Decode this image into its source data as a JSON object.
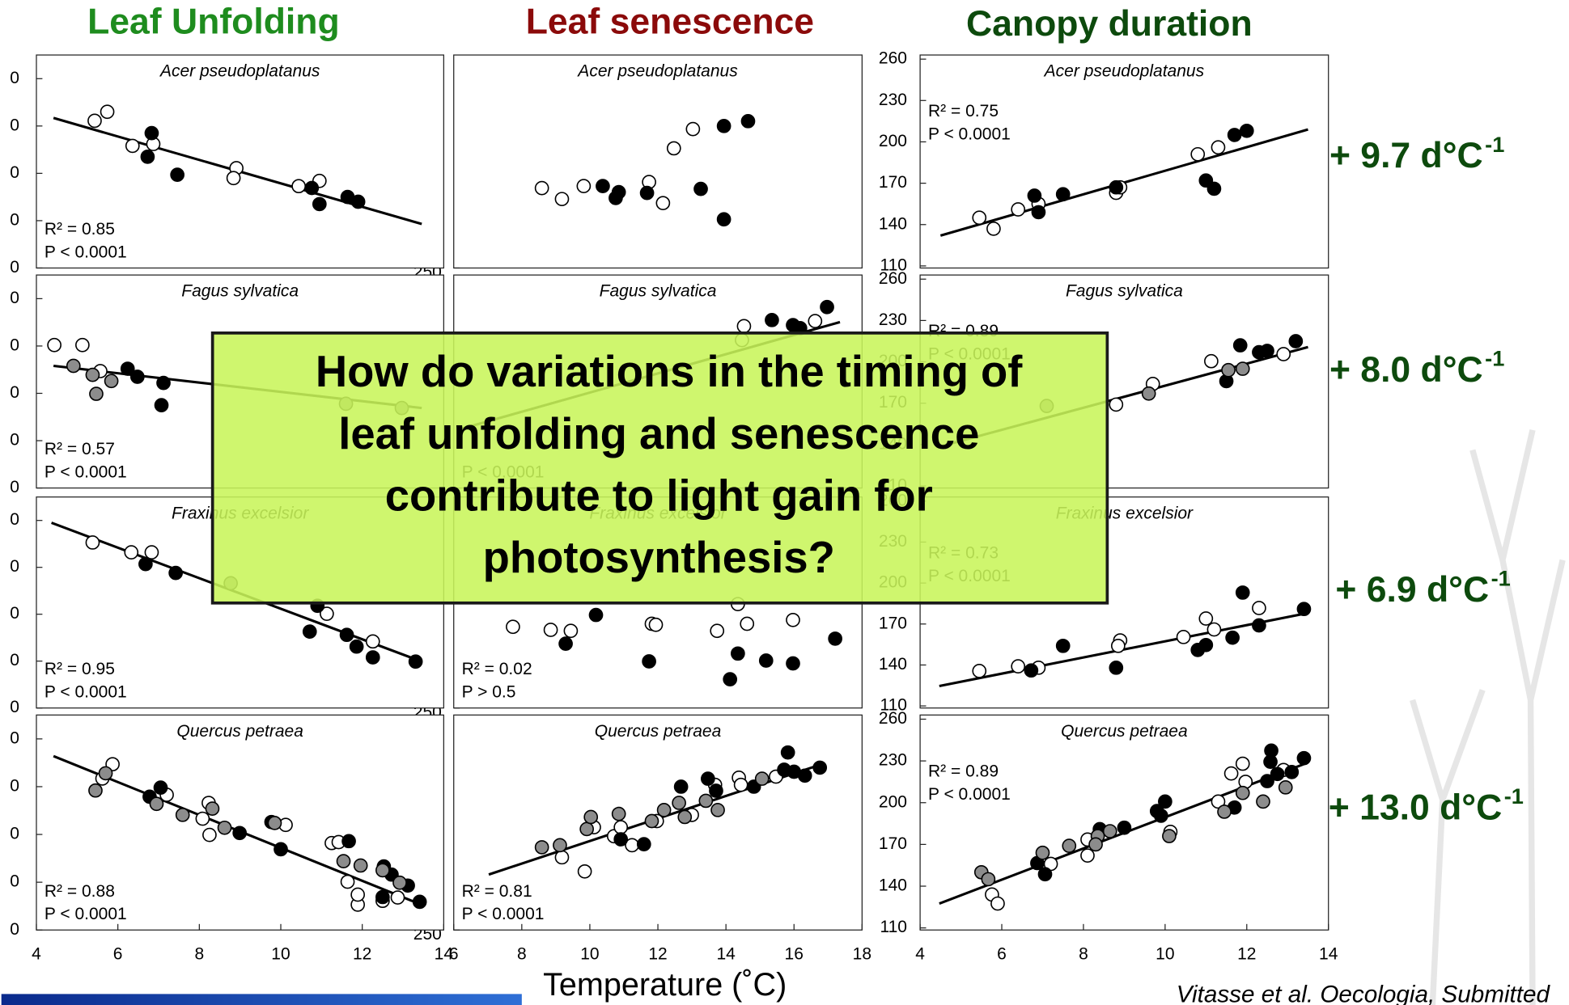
{
  "column_titles": [
    "Leaf Unfolding",
    "Leaf senescence",
    "Canopy duration"
  ],
  "rates": [
    {
      "text": "+ 9.7 d°C",
      "sup": "-1"
    },
    {
      "text": "+ 8.0 d°C",
      "sup": "-1"
    },
    {
      "text": "+ 6.9 d°C",
      "sup": "-1"
    },
    {
      "text": "+ 13.0 d°C",
      "sup": "-1"
    }
  ],
  "question": [
    "How do variations in the timing of",
    "leaf unfolding and senescence",
    "contribute to light gain for",
    "photosynthesis?"
  ],
  "x_label": "Temperature (˚C)",
  "citation": "Vitasse et al. Oecologia, Submitted",
  "chart_data": [
    {
      "type": "scatter",
      "title": "Acer pseudoplatanus",
      "xlim": [
        4,
        14
      ],
      "ylim": [
        90,
        135
      ],
      "yticks": [
        {
          "value": 90,
          "label": "0"
        },
        {
          "value": 100,
          "label": "0"
        },
        {
          "value": 110,
          "label": "0"
        },
        {
          "value": 120,
          "label": "0"
        },
        {
          "value": 130,
          "label": "0"
        }
      ],
      "series": [
        {
          "color": "#ffffff",
          "x": [
            5.43,
            5.74,
            6.36,
            6.87,
            8.91,
            8.84,
            10.44,
            10.95
          ],
          "values": [
            121.1,
            123,
            115.8,
            116.2,
            111.1,
            109,
            107.3,
            108.4
          ]
        },
        {
          "color": "#000000",
          "x": [
            6.83,
            6.73,
            7.46,
            10.76,
            10.95,
            11.64,
            11.9
          ],
          "values": [
            118.5,
            113.5,
            109.7,
            106.9,
            103.5,
            105,
            104
          ]
        }
      ],
      "trend": {
        "x": [
          4.42,
          13.46
        ],
        "values": [
          121.7,
          99.3
        ]
      },
      "stats": [
        "R² = 0.85",
        "P < 0.0001"
      ]
    },
    {
      "type": "scatter",
      "title": "Acer pseudoplatanus",
      "xlim": [
        6,
        18
      ],
      "ylim": [
        250,
        355
      ],
      "yticks": [
        250
      ],
      "series": [
        {
          "color": "#ffffff",
          "x": [
            8.59,
            9.18,
            9.82,
            11.74,
            12.15,
            12.47,
            13.03
          ],
          "values": [
            289.4,
            284,
            290.4,
            292.4,
            282,
            309,
            318.5
          ]
        },
        {
          "color": "#000000",
          "x": [
            10.38,
            10.85,
            10.76,
            11.68,
            13.26,
            13.94,
            13.94,
            14.65
          ],
          "values": [
            290.4,
            287.4,
            284.5,
            287,
            289,
            320,
            274,
            322.4
          ]
        }
      ]
    },
    {
      "type": "scatter",
      "title": "Acer pseudoplatanus",
      "xlim": [
        4,
        14
      ],
      "ylim": [
        108.5,
        263
      ],
      "yticks": [
        110,
        140,
        170,
        200,
        230,
        260
      ],
      "series": [
        {
          "color": "#ffffff",
          "x": [
            5.45,
            5.8,
            6.4,
            6.9,
            8.8,
            8.9,
            10.8,
            11.3
          ],
          "values": [
            145,
            137,
            151,
            155,
            163,
            167,
            191,
            196
          ]
        },
        {
          "color": "#000000",
          "x": [
            6.8,
            6.9,
            7.5,
            8.8,
            11,
            11.2,
            11.7,
            12
          ],
          "values": [
            161,
            149,
            162,
            167,
            172,
            166,
            205,
            208
          ]
        }
      ],
      "trend": {
        "x": [
          4.5,
          13.5
        ],
        "values": [
          132,
          209
        ]
      },
      "stats": [
        "R² = 0.75",
        "P < 0.0001"
      ]
    },
    {
      "type": "scatter",
      "title": "Fagus sylvatica",
      "xlim": [
        4,
        14
      ],
      "ylim": [
        90,
        135
      ],
      "yticks": [
        {
          "value": 90,
          "label": "0"
        },
        {
          "value": 100,
          "label": "0"
        },
        {
          "value": 110,
          "label": "0"
        },
        {
          "value": 120,
          "label": "0"
        },
        {
          "value": 130,
          "label": "0"
        }
      ],
      "series": [
        {
          "color": "#ffffff",
          "x": [
            4.44,
            5.13,
            5.57
          ],
          "values": [
            120.2,
            120.2,
            114.7
          ]
        },
        {
          "color": "#000000",
          "x": [
            6.24,
            6.48,
            7.12,
            7.07
          ],
          "values": [
            115.2,
            113.5,
            112.2,
            107.5
          ]
        },
        {
          "color": "#8c8c8c",
          "x": [
            4.91,
            5.38,
            5.47,
            5.84,
            11.6,
            12.97
          ],
          "values": [
            115.8,
            113.9,
            109.9,
            112.6,
            107.8,
            106.9
          ]
        }
      ],
      "trend": {
        "x": [
          4.42,
          13.46
        ],
        "values": [
          115.8,
          106.9
        ]
      },
      "stats": [
        "R² = 0.57",
        "P < 0.0001"
      ]
    },
    {
      "type": "scatter",
      "title": "Fagus sylvatica",
      "xlim": [
        6,
        18
      ],
      "ylim": [
        250,
        355
      ],
      "series": [
        {
          "color": "#ffffff",
          "x": [
            14.53,
            16.62,
            14.47
          ],
          "values": [
            329.8,
            332.3,
            322.9
          ]
        },
        {
          "color": "#000000",
          "x": [
            15.35,
            15.97,
            16.18,
            16.97
          ],
          "values": [
            332.8,
            330.3,
            328.8,
            339.2
          ]
        }
      ],
      "trend": {
        "x": [
          6.1,
          17.35
        ],
        "values": [
          278.6,
          331.8
        ]
      },
      "stats": [
        "P < 0.0001"
      ]
    },
    {
      "type": "scatter",
      "title": "Fagus sylvatica",
      "xlim": [
        4,
        14
      ],
      "ylim": [
        108.5,
        263
      ],
      "yticks": [
        110,
        140,
        170,
        200,
        230,
        260
      ],
      "series": [
        {
          "color": "#ffffff",
          "x": [
            11.13,
            12.9,
            8.8,
            9.7
          ],
          "values": [
            200.5,
            205.6,
            169,
            184
          ]
        },
        {
          "color": "#000000",
          "x": [
            11.84,
            12.3,
            12.5,
            13.2,
            11.5
          ],
          "values": [
            212,
            207,
            208,
            215,
            186
          ]
        },
        {
          "color": "#8c8c8c",
          "x": [
            11.55,
            11.9,
            9.6,
            7.1
          ],
          "values": [
            194,
            195,
            177,
            168
          ]
        }
      ],
      "trend": {
        "x": [
          4.5,
          13.5
        ],
        "values": [
          138.7,
          210.7
        ]
      },
      "stats": [
        "R² = 0.89",
        "P < 0.0001"
      ]
    },
    {
      "type": "scatter",
      "title": "Fraxinus excelsior",
      "xlim": [
        4,
        14
      ],
      "ylim": [
        90,
        135
      ],
      "yticks": [
        {
          "value": 90,
          "label": "0"
        },
        {
          "value": 100,
          "label": "0"
        },
        {
          "value": 110,
          "label": "0"
        },
        {
          "value": 120,
          "label": "0"
        },
        {
          "value": 130,
          "label": "0"
        }
      ],
      "series": [
        {
          "color": "#ffffff",
          "x": [
            5.38,
            6.33,
            6.83,
            11.13,
            12.26
          ],
          "values": [
            125.3,
            123.2,
            123.2,
            110.1,
            104.2
          ]
        },
        {
          "color": "#000000",
          "x": [
            6.68,
            7.42,
            10.71,
            10.9,
            11.62,
            11.86,
            12.26,
            13.31
          ],
          "values": [
            120.7,
            118.8,
            106.3,
            111.8,
            105.6,
            103.1,
            100.8,
            99.9
          ]
        },
        {
          "color": "#8c8c8c",
          "x": [
            8.77
          ],
          "values": [
            116.6
          ]
        }
      ],
      "trend": {
        "x": [
          4.37,
          13.46
        ],
        "values": [
          129.5,
          99.9
        ]
      },
      "stats": [
        "R² = 0.95",
        "P < 0.0001"
      ]
    },
    {
      "type": "scatter",
      "title": "Fraxinus excelsior",
      "xlim": [
        6,
        18
      ],
      "ylim": [
        250,
        355
      ],
      "yticks": [
        250
      ],
      "series": [
        {
          "color": "#ffffff",
          "x": [
            7.74,
            8.85,
            9.44,
            11.82,
            11.94,
            13.74,
            14.62,
            14.35,
            15.97
          ],
          "values": [
            290.4,
            288.9,
            288.4,
            291.9,
            291.4,
            288.4,
            291.9,
            301.7,
            293.8
          ]
        },
        {
          "color": "#000000",
          "x": [
            9.29,
            10.18,
            11.74,
            14.35,
            14.12,
            15.18,
            15.97,
            17.21
          ],
          "values": [
            282,
            296.3,
            273.2,
            277.1,
            264.3,
            273.6,
            272.2,
            284.5
          ]
        }
      ],
      "stats": [
        "R² = 0.02",
        "P > 0.5"
      ]
    },
    {
      "type": "scatter",
      "title": "Fraxinus excelsior",
      "xlim": [
        4,
        14
      ],
      "ylim": [
        108.5,
        263
      ],
      "yticks": [
        110,
        140,
        170,
        200,
        230,
        260
      ],
      "series": [
        {
          "color": "#ffffff",
          "x": [
            5.45,
            6.4,
            6.9,
            8.9,
            8.85,
            10.45,
            11.0,
            11.2,
            12.3
          ],
          "values": [
            135.6,
            139,
            138,
            158,
            154,
            160.5,
            174,
            166,
            181.7
          ]
        },
        {
          "color": "#000000",
          "x": [
            6.72,
            7.5,
            8.8,
            10.8,
            11.0,
            11.65,
            11.9,
            12.3,
            13.4
          ],
          "values": [
            136,
            154,
            138,
            151,
            154.6,
            160,
            193,
            169,
            181
          ]
        }
      ],
      "trend": {
        "x": [
          4.47,
          13.49
        ],
        "values": [
          124.6,
          178
        ]
      },
      "stats": [
        "R² = 0.73",
        "P < 0.0001"
      ]
    },
    {
      "type": "scatter",
      "title": "Quercus petraea",
      "xlim": [
        4,
        14
      ],
      "ylim": [
        90,
        135
      ],
      "yticks": [
        {
          "value": 90,
          "label": "0"
        },
        {
          "value": 100,
          "label": "0"
        },
        {
          "value": 110,
          "label": "0"
        },
        {
          "value": 120,
          "label": "0"
        },
        {
          "value": 130,
          "label": "0"
        }
      ],
      "xticks": [
        4,
        6,
        8,
        10,
        12,
        14
      ],
      "series": [
        {
          "color": "#ffffff",
          "x": [
            5.62,
            5.87,
            7.2,
            8.08,
            8.23,
            8.25,
            10.12,
            11.25,
            11.42,
            11.64,
            11.89,
            11.89,
            12.5,
            12.87
          ],
          "values": [
            121.7,
            124.7,
            118.3,
            113.3,
            116.6,
            109.9,
            112.0,
            108.2,
            108.4,
            100.1,
            95.3,
            97.4,
            96.1,
            96.8
          ]
        },
        {
          "color": "#000000",
          "x": [
            6.78,
            7.05,
            8.99,
            9.77,
            10.0,
            11.67,
            12.53,
            12.5,
            12.72,
            13.12,
            13.41
          ],
          "values": [
            117.9,
            119.8,
            110.3,
            112.6,
            106.9,
            108.6,
            103.3,
            96.9,
            101.6,
            99.3,
            95.9
          ]
        },
        {
          "color": "#8c8c8c",
          "x": [
            5.45,
            5.7,
            6.95,
            7.59,
            8.32,
            8.62,
            9.85,
            11.54,
            11.96,
            12.5,
            12.92
          ],
          "values": [
            119.2,
            122.8,
            116.4,
            114.1,
            115.4,
            111.4,
            112.4,
            104.4,
            103.5,
            102.5,
            99.9
          ]
        }
      ],
      "trend": {
        "x": [
          4.42,
          13.51
        ],
        "values": [
          126.4,
          95.1
        ]
      },
      "stats": [
        "R² = 0.88",
        "P < 0.0001"
      ]
    },
    {
      "type": "scatter",
      "title": "Quercus petraea",
      "xlim": [
        6,
        18
      ],
      "ylim": [
        250,
        355
      ],
      "yticks": [
        250
      ],
      "xticks": [
        6,
        8,
        10,
        12,
        14,
        16,
        18
      ],
      "series": [
        {
          "color": "#ffffff",
          "x": [
            9.18,
            9.85,
            10.12,
            10.71,
            10.91,
            11.24,
            11.97,
            13.0,
            13.68,
            14.38,
            14.44,
            15.47
          ],
          "values": [
            285.5,
            278.6,
            300.2,
            295.8,
            300.2,
            291.4,
            303.2,
            306.2,
            320.9,
            324.4,
            320.9,
            324.9
          ]
        },
        {
          "color": "#000000",
          "x": [
            10.91,
            11.59,
            12.68,
            13.47,
            13.71,
            14.82,
            15.71,
            15.82,
            16.0,
            16.32,
            16.76
          ],
          "values": [
            294.3,
            291.9,
            320,
            323.9,
            318,
            320,
            328.3,
            336.7,
            327.3,
            325.4,
            329.3
          ]
        },
        {
          "color": "#8c8c8c",
          "x": [
            8.59,
            9.12,
            9.91,
            10.03,
            10.85,
            11.82,
            12.18,
            12.79,
            12.62,
            13.41,
            13.76,
            15.06
          ],
          "values": [
            290.4,
            291.4,
            299.3,
            305.2,
            306.7,
            303.2,
            308.6,
            305.2,
            312.1,
            313.1,
            308.6,
            323.9
          ]
        }
      ],
      "trend": {
        "x": [
          7.03,
          16.88
        ],
        "values": [
          277.1,
          331.3
        ]
      },
      "stats": [
        "R² = 0.81",
        "P < 0.0001"
      ]
    },
    {
      "type": "scatter",
      "title": "Quercus petraea",
      "xlim": [
        4,
        14
      ],
      "ylim": [
        108.5,
        263
      ],
      "yticks": [
        110,
        140,
        170,
        200,
        230,
        260
      ],
      "xticks": [
        4,
        6,
        8,
        10,
        12,
        14
      ],
      "series": [
        {
          "color": "#ffffff",
          "x": [
            5.76,
            5.9,
            7.2,
            8.1,
            8.1,
            10.13,
            11.3,
            11.62,
            11.9,
            11.97,
            12.9
          ],
          "values": [
            134,
            127.5,
            156,
            162,
            173.5,
            179,
            200.8,
            221,
            228,
            215,
            223.5
          ]
        },
        {
          "color": "#000000",
          "x": [
            6.87,
            7.06,
            8.4,
            9.0,
            9.8,
            10.0,
            9.9,
            11.7,
            12.5,
            12.58,
            12.6,
            12.75,
            13.1,
            13.4
          ],
          "values": [
            156.6,
            148.6,
            181,
            182,
            194,
            200.8,
            190.6,
            196.5,
            215.5,
            229.4,
            237.4,
            220.6,
            222,
            232
          ]
        },
        {
          "color": "#8c8c8c",
          "x": [
            5.5,
            5.67,
            7.0,
            7.65,
            8.35,
            8.65,
            8.3,
            10.1,
            11.45,
            11.9,
            12.4,
            12.95
          ],
          "values": [
            150,
            145,
            164,
            169,
            176,
            179.5,
            170,
            176,
            193.5,
            207,
            200.8,
            211
          ]
        }
      ],
      "trend": {
        "x": [
          4.47,
          13.49
        ],
        "values": [
          127.5,
          228.7
        ]
      },
      "stats": [
        "R² = 0.89",
        "P < 0.0001"
      ]
    }
  ]
}
